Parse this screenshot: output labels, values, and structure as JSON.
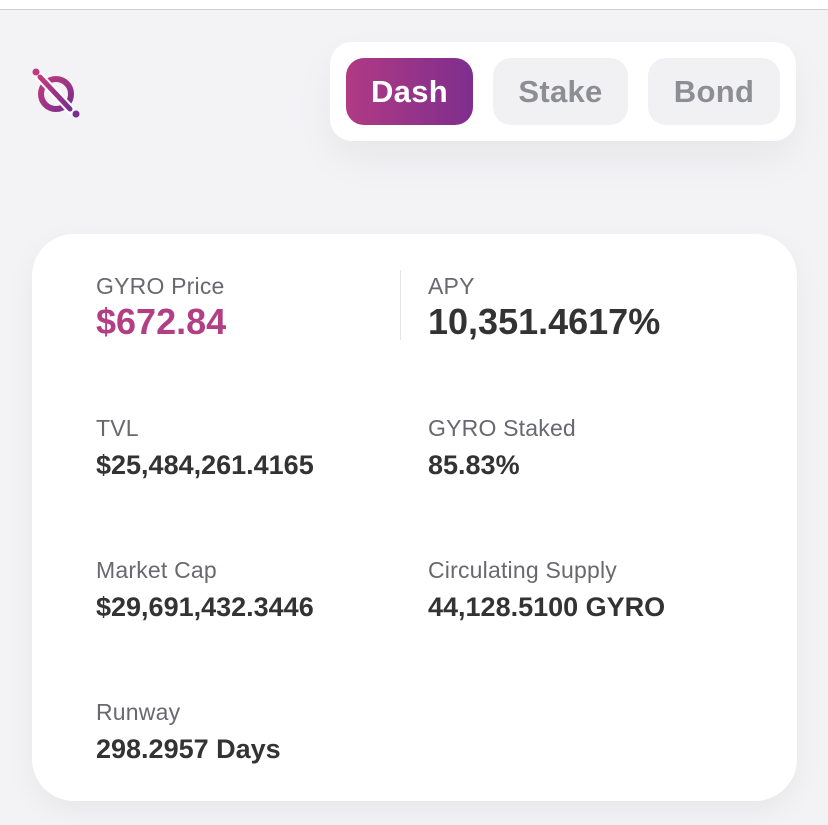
{
  "nav": {
    "tabs": [
      {
        "label": "Dash",
        "active": true
      },
      {
        "label": "Stake",
        "active": false
      },
      {
        "label": "Bond",
        "active": false
      }
    ]
  },
  "metrics": {
    "gyro_price": {
      "label": "GYRO Price",
      "value": "$672.84"
    },
    "apy": {
      "label": "APY",
      "value": "10,351.4617%"
    },
    "tvl": {
      "label": "TVL",
      "value": "$25,484,261.4165"
    },
    "gyro_staked": {
      "label": "GYRO Staked",
      "value": "85.83%"
    },
    "market_cap": {
      "label": "Market Cap",
      "value": "$29,691,432.3446"
    },
    "circulating_supply": {
      "label": "Circulating Supply",
      "value": "44,128.5100 GYRO"
    },
    "runway": {
      "label": "Runway",
      "value": "298.2957 Days"
    }
  },
  "colors": {
    "accent": "#b23f84",
    "accent_gradient_end": "#7e2e8e",
    "text": "#333333",
    "muted": "#686870",
    "background": "#f3f3f6"
  },
  "icons": {
    "logo": "gyro-logo-icon"
  }
}
